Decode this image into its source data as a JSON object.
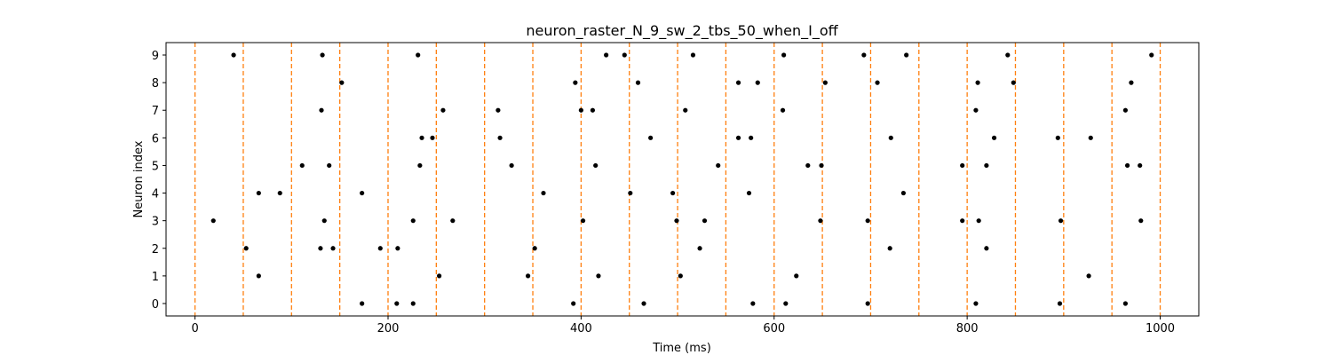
{
  "chart_data": {
    "type": "scatter",
    "title": "neuron_raster_N_9_sw_2_tbs_50_when_I_off",
    "xlabel": "Time (ms)",
    "ylabel": "Neuron index",
    "xlim": [
      -30,
      1040
    ],
    "ylim": [
      -0.45,
      9.45
    ],
    "xticks": [
      0,
      200,
      400,
      600,
      800,
      1000
    ],
    "yticks": [
      0,
      1,
      2,
      3,
      4,
      5,
      6,
      7,
      8,
      9
    ],
    "grid": false,
    "point_color": "#000000",
    "vline_color": "#ff7f0e",
    "vlines": [
      0,
      50,
      100,
      150,
      200,
      250,
      300,
      350,
      400,
      450,
      500,
      550,
      600,
      650,
      700,
      750,
      800,
      850,
      900,
      950,
      1000
    ],
    "series": [
      {
        "points": [
          [
            40,
            9
          ],
          [
            132,
            9
          ],
          [
            231,
            9
          ],
          [
            426,
            9
          ],
          [
            445,
            9
          ],
          [
            516,
            9
          ],
          [
            610,
            9
          ],
          [
            693,
            9
          ],
          [
            737,
            9
          ],
          [
            842,
            9
          ],
          [
            991,
            9
          ],
          [
            152,
            8
          ],
          [
            394,
            8
          ],
          [
            459,
            8
          ],
          [
            563,
            8
          ],
          [
            583,
            8
          ],
          [
            653,
            8
          ],
          [
            707,
            8
          ],
          [
            811,
            8
          ],
          [
            848,
            8
          ],
          [
            970,
            8
          ],
          [
            131,
            7
          ],
          [
            257,
            7
          ],
          [
            314,
            7
          ],
          [
            400,
            7
          ],
          [
            412,
            7
          ],
          [
            508,
            7
          ],
          [
            609,
            7
          ],
          [
            809,
            7
          ],
          [
            964,
            7
          ],
          [
            235,
            6
          ],
          [
            246,
            6
          ],
          [
            316,
            6
          ],
          [
            472,
            6
          ],
          [
            563,
            6
          ],
          [
            576,
            6
          ],
          [
            721,
            6
          ],
          [
            828,
            6
          ],
          [
            894,
            6
          ],
          [
            928,
            6
          ],
          [
            111,
            5
          ],
          [
            139,
            5
          ],
          [
            233,
            5
          ],
          [
            328,
            5
          ],
          [
            415,
            5
          ],
          [
            542,
            5
          ],
          [
            635,
            5
          ],
          [
            649,
            5
          ],
          [
            795,
            5
          ],
          [
            820,
            5
          ],
          [
            966,
            5
          ],
          [
            979,
            5
          ],
          [
            66,
            4
          ],
          [
            88,
            4
          ],
          [
            173,
            4
          ],
          [
            361,
            4
          ],
          [
            451,
            4
          ],
          [
            495,
            4
          ],
          [
            574,
            4
          ],
          [
            734,
            4
          ],
          [
            19,
            3
          ],
          [
            134,
            3
          ],
          [
            226,
            3
          ],
          [
            267,
            3
          ],
          [
            402,
            3
          ],
          [
            499,
            3
          ],
          [
            528,
            3
          ],
          [
            648,
            3
          ],
          [
            697,
            3
          ],
          [
            795,
            3
          ],
          [
            812,
            3
          ],
          [
            897,
            3
          ],
          [
            980,
            3
          ],
          [
            53,
            2
          ],
          [
            130,
            2
          ],
          [
            143,
            2
          ],
          [
            192,
            2
          ],
          [
            210,
            2
          ],
          [
            352,
            2
          ],
          [
            523,
            2
          ],
          [
            720,
            2
          ],
          [
            820,
            2
          ],
          [
            66,
            1
          ],
          [
            253,
            1
          ],
          [
            345,
            1
          ],
          [
            418,
            1
          ],
          [
            503,
            1
          ],
          [
            623,
            1
          ],
          [
            926,
            1
          ],
          [
            173,
            0
          ],
          [
            209,
            0
          ],
          [
            226,
            0
          ],
          [
            392,
            0
          ],
          [
            465,
            0
          ],
          [
            578,
            0
          ],
          [
            612,
            0
          ],
          [
            697,
            0
          ],
          [
            809,
            0
          ],
          [
            896,
            0
          ],
          [
            964,
            0
          ]
        ]
      }
    ]
  }
}
